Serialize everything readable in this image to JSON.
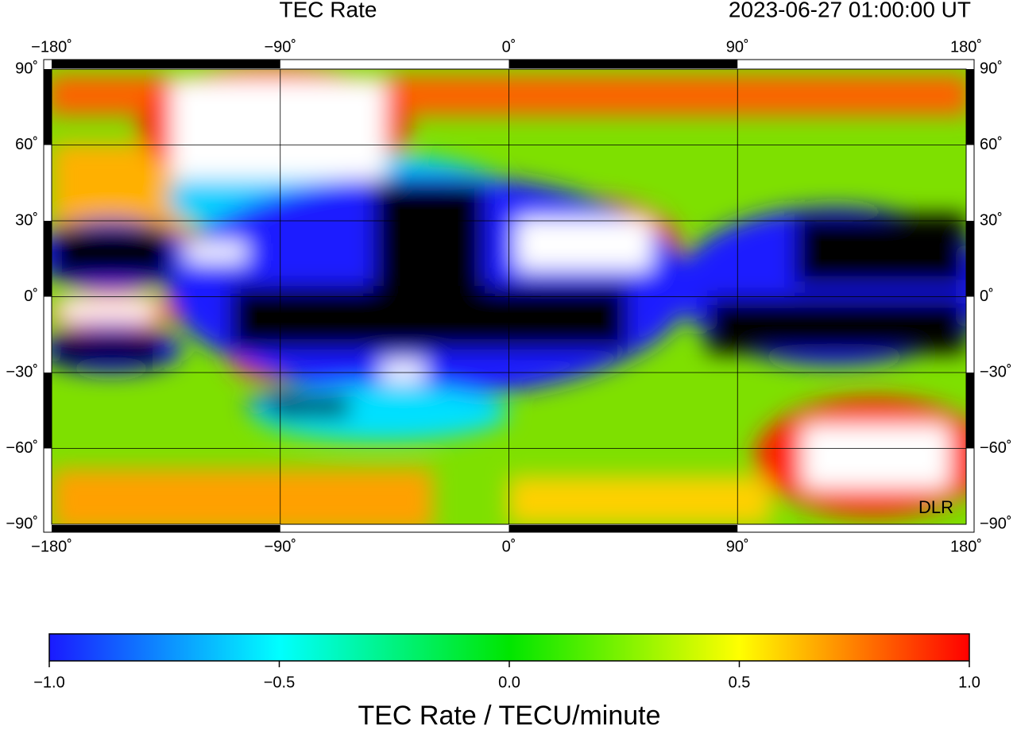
{
  "title": "TEC Rate",
  "timestamp": "2023-06-27  01:00:00 UT",
  "map": {
    "type": "heatmap",
    "lonlim": [
      -180,
      180
    ],
    "latlim": [
      -90,
      90
    ],
    "lon_ticks": [
      {
        "value": -180,
        "label": "−180˚"
      },
      {
        "value": -90,
        "label": "−90˚"
      },
      {
        "value": 0,
        "label": "0˚"
      },
      {
        "value": 90,
        "label": "90˚"
      },
      {
        "value": 180,
        "label": "180˚"
      }
    ],
    "lat_ticks": [
      {
        "value": 90,
        "label": "90˚"
      },
      {
        "value": 60,
        "label": "60˚"
      },
      {
        "value": 30,
        "label": "30˚"
      },
      {
        "value": 0,
        "label": "0˚"
      },
      {
        "value": -30,
        "label": "−30˚"
      },
      {
        "value": -60,
        "label": "−60˚"
      },
      {
        "value": -90,
        "label": "−90˚"
      }
    ],
    "credit": "DLR"
  },
  "colorbar": {
    "range": [
      -1,
      1
    ],
    "colors": [
      "#1a1aff",
      "#00ffff",
      "#00e600",
      "#ffff00",
      "#ff0000"
    ],
    "ticks": [
      {
        "value": -1,
        "label": "−1.0"
      },
      {
        "value": -0.5,
        "label": "−0.5"
      },
      {
        "value": 0,
        "label": "0.0"
      },
      {
        "value": 0.5,
        "label": "0.5"
      },
      {
        "value": 1,
        "label": "1.0"
      }
    ],
    "label": "TEC Rate / TECU/minute"
  }
}
